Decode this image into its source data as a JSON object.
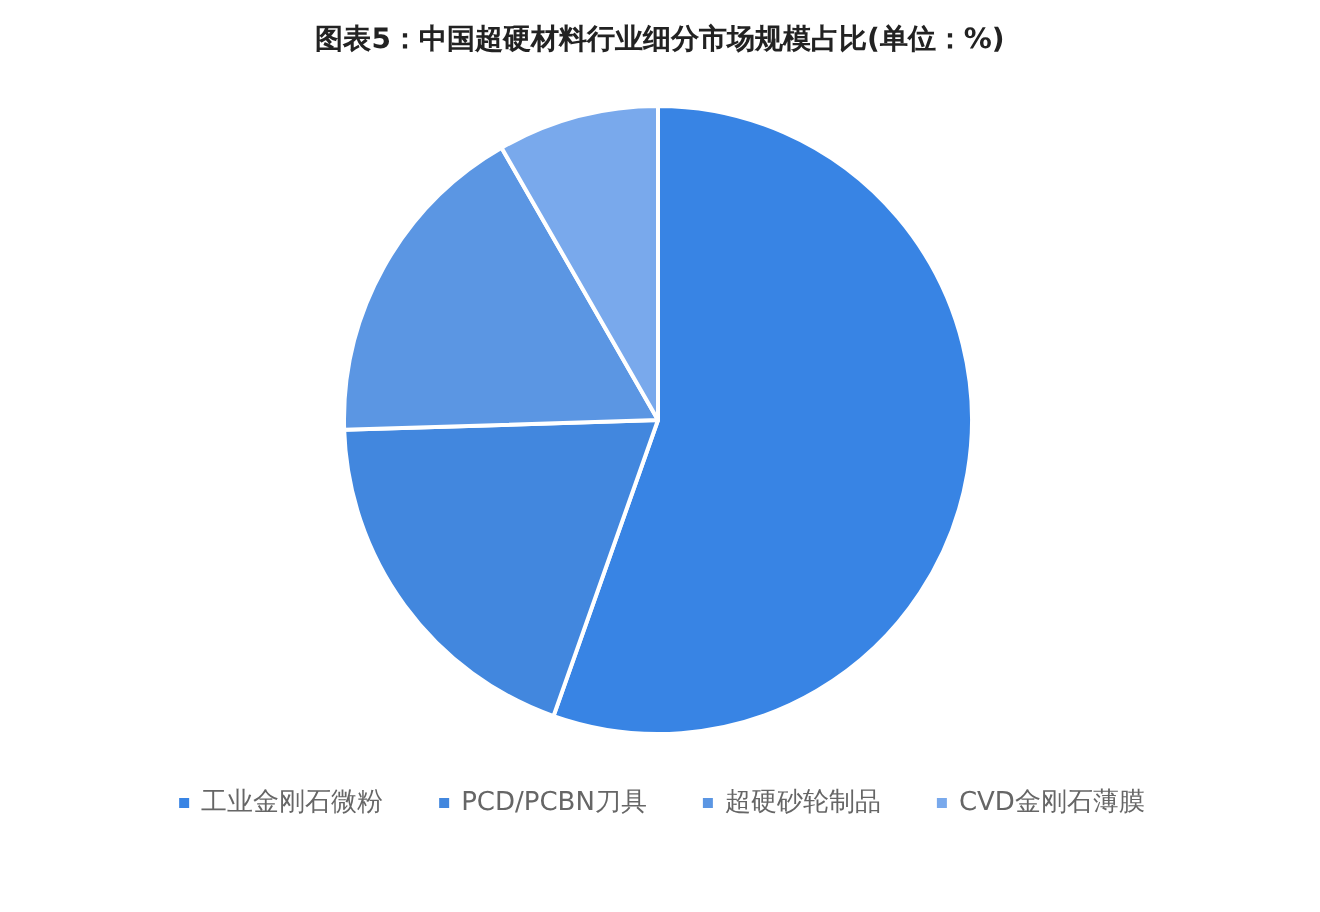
{
  "chart_data": {
    "type": "pie",
    "title": "图表5：中国超硬材料行业细分市场规模占比(单位：%)",
    "categories": [
      "工业金刚石微粉",
      "PCD/PCBN刀具",
      "超硬砂轮制品",
      "CVD金刚石薄膜"
    ],
    "values": [
      55.4,
      19.1,
      17.2,
      8.3
    ],
    "colors": [
      "#3884e4",
      "#4287de",
      "#5b96e3",
      "#79a9ec"
    ],
    "legend": "bottom"
  }
}
